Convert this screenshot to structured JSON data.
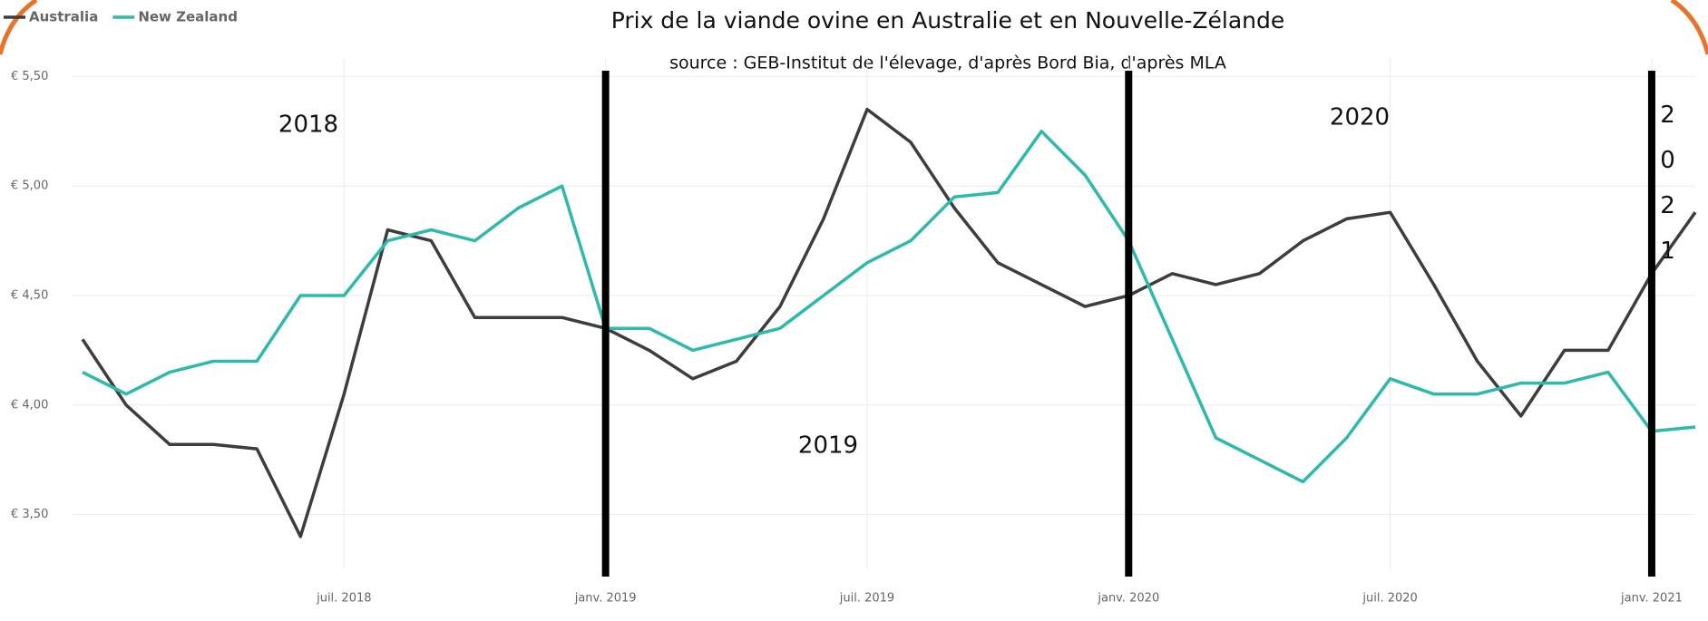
{
  "chart_data": {
    "type": "line",
    "title": "Prix de la viande ovine en Australie et en Nouvelle-Zélande",
    "subtitle": "source : GEB-Institut de l'élevage, d'après Bord Bia, d'après MLA",
    "x": [
      "2018-01",
      "2018-02",
      "2018-03",
      "2018-04",
      "2018-05",
      "2018-06",
      "2018-07",
      "2018-08",
      "2018-09",
      "2018-10",
      "2018-11",
      "2018-12",
      "2019-01",
      "2019-02",
      "2019-03",
      "2019-04",
      "2019-05",
      "2019-06",
      "2019-07",
      "2019-08",
      "2019-09",
      "2019-10",
      "2019-11",
      "2019-12",
      "2020-01",
      "2020-02",
      "2020-03",
      "2020-04",
      "2020-05",
      "2020-06",
      "2020-07",
      "2020-08",
      "2020-09",
      "2020-10",
      "2020-11",
      "2020-12",
      "2021-01",
      "2021-02"
    ],
    "series": [
      {
        "name": "Australia",
        "color": "#3d3d3d",
        "values": [
          4.3,
          4.0,
          3.82,
          3.82,
          3.8,
          3.4,
          4.05,
          4.8,
          4.75,
          4.4,
          4.4,
          4.4,
          4.35,
          4.25,
          4.12,
          4.2,
          4.45,
          4.85,
          5.35,
          5.2,
          4.9,
          4.65,
          4.55,
          4.45,
          4.5,
          4.6,
          4.55,
          4.6,
          4.75,
          4.85,
          4.88,
          4.55,
          4.2,
          3.95,
          4.25,
          4.25,
          4.6,
          4.88
        ]
      },
      {
        "name": "New Zealand",
        "color": "#2fb8ac",
        "values": [
          4.15,
          4.05,
          4.15,
          4.2,
          4.2,
          4.5,
          4.5,
          4.75,
          4.8,
          4.75,
          4.9,
          5.0,
          4.35,
          4.35,
          4.25,
          4.3,
          4.35,
          4.5,
          4.65,
          4.75,
          4.95,
          4.97,
          5.25,
          5.05,
          4.75,
          4.3,
          3.85,
          3.75,
          3.65,
          3.85,
          4.12,
          4.05,
          4.05,
          4.1,
          4.1,
          4.15,
          3.88,
          3.9
        ]
      }
    ],
    "xlim": [
      "2018-01",
      "2021-02"
    ],
    "xticks": [
      {
        "value": "2018-07",
        "label": "juil. 2018"
      },
      {
        "value": "2019-01",
        "label": "janv. 2019"
      },
      {
        "value": "2019-07",
        "label": "juil. 2019"
      },
      {
        "value": "2020-01",
        "label": "janv. 2020"
      },
      {
        "value": "2020-07",
        "label": "juil. 2020"
      },
      {
        "value": "2021-01",
        "label": "janv. 2021"
      }
    ],
    "ylim": [
      3.25,
      5.75
    ],
    "yticks": [
      {
        "value": 3.5,
        "label": "€ 3,50"
      },
      {
        "value": 4,
        "label": "€ 4,00"
      },
      {
        "value": 4.5,
        "label": "€ 4,50"
      },
      {
        "value": 5,
        "label": "€ 5,00"
      },
      {
        "value": 5.5,
        "label": "€ 5,50"
      }
    ],
    "grid": true,
    "legend": "top-left",
    "year_lines": [
      "2019-01",
      "2020-01",
      "2021-01"
    ],
    "annotations": [
      "2018",
      "2019",
      "2020",
      "2021"
    ]
  }
}
